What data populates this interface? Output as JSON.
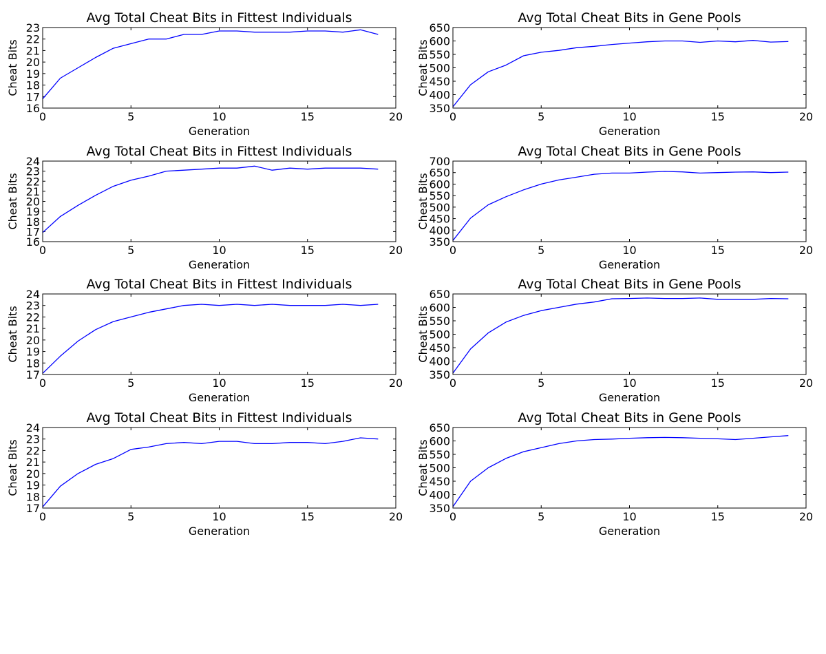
{
  "colors": {
    "series": "#0000ff"
  },
  "chart_data": [
    {
      "type": "line",
      "title": "Avg Total Cheat Bits in Fittest Individuals",
      "xlabel": "Generation",
      "ylabel": "Cheat Bits",
      "xlim": [
        0,
        20
      ],
      "ylim": [
        16,
        23
      ],
      "xticks": [
        0,
        5,
        10,
        15,
        20
      ],
      "yticks": [
        16,
        17,
        18,
        19,
        20,
        21,
        22,
        23
      ],
      "grid": false,
      "x": [
        0,
        1,
        2,
        3,
        4,
        5,
        6,
        7,
        8,
        9,
        10,
        11,
        12,
        13,
        14,
        15,
        16,
        17,
        18,
        19
      ],
      "series": [
        {
          "values": [
            16.8,
            18.6,
            19.5,
            20.4,
            21.2,
            21.6,
            22.0,
            22.0,
            22.4,
            22.4,
            22.7,
            22.7,
            22.6,
            22.6,
            22.6,
            22.7,
            22.7,
            22.6,
            22.8,
            22.4
          ]
        }
      ]
    },
    {
      "type": "line",
      "title": "Avg Total Cheat Bits in Gene Pools",
      "xlabel": "Generation",
      "ylabel": "Cheat Bits",
      "xlim": [
        0,
        20
      ],
      "ylim": [
        350,
        650
      ],
      "xticks": [
        0,
        5,
        10,
        15,
        20
      ],
      "yticks": [
        350,
        400,
        450,
        500,
        550,
        600,
        650
      ],
      "grid": false,
      "x": [
        0,
        1,
        2,
        3,
        4,
        5,
        6,
        7,
        8,
        9,
        10,
        11,
        12,
        13,
        14,
        15,
        16,
        17,
        18,
        19
      ],
      "series": [
        {
          "values": [
            355,
            437,
            485,
            510,
            545,
            558,
            565,
            575,
            580,
            587,
            592,
            597,
            600,
            600,
            595,
            600,
            597,
            602,
            596,
            598
          ]
        }
      ]
    },
    {
      "type": "line",
      "title": "Avg Total Cheat Bits in Fittest Individuals",
      "xlabel": "Generation",
      "ylabel": "Cheat Bits",
      "xlim": [
        0,
        20
      ],
      "ylim": [
        16,
        24
      ],
      "xticks": [
        0,
        5,
        10,
        15,
        20
      ],
      "yticks": [
        16,
        17,
        18,
        19,
        20,
        21,
        22,
        23,
        24
      ],
      "grid": false,
      "x": [
        0,
        1,
        2,
        3,
        4,
        5,
        6,
        7,
        8,
        9,
        10,
        11,
        12,
        13,
        14,
        15,
        16,
        17,
        18,
        19
      ],
      "series": [
        {
          "values": [
            16.9,
            18.5,
            19.6,
            20.6,
            21.5,
            22.1,
            22.5,
            23.0,
            23.1,
            23.2,
            23.3,
            23.3,
            23.5,
            23.1,
            23.3,
            23.2,
            23.3,
            23.3,
            23.3,
            23.2
          ]
        }
      ]
    },
    {
      "type": "line",
      "title": "Avg Total Cheat Bits in Gene Pools",
      "xlabel": "Generation",
      "ylabel": "Cheat Bits",
      "xlim": [
        0,
        20
      ],
      "ylim": [
        350,
        700
      ],
      "xticks": [
        0,
        5,
        10,
        15,
        20
      ],
      "yticks": [
        350,
        400,
        450,
        500,
        550,
        600,
        650,
        700
      ],
      "grid": false,
      "x": [
        0,
        1,
        2,
        3,
        4,
        5,
        6,
        7,
        8,
        9,
        10,
        11,
        12,
        13,
        14,
        15,
        16,
        17,
        18,
        19
      ],
      "series": [
        {
          "values": [
            355,
            452,
            510,
            545,
            575,
            600,
            618,
            630,
            643,
            648,
            648,
            652,
            655,
            653,
            648,
            650,
            652,
            653,
            650,
            652
          ]
        }
      ]
    },
    {
      "type": "line",
      "title": "Avg Total Cheat Bits in Fittest Individuals",
      "xlabel": "Generation",
      "ylabel": "Cheat Bits",
      "xlim": [
        0,
        20
      ],
      "ylim": [
        17,
        24
      ],
      "xticks": [
        0,
        5,
        10,
        15,
        20
      ],
      "yticks": [
        17,
        18,
        19,
        20,
        21,
        22,
        23,
        24
      ],
      "grid": false,
      "x": [
        0,
        1,
        2,
        3,
        4,
        5,
        6,
        7,
        8,
        9,
        10,
        11,
        12,
        13,
        14,
        15,
        16,
        17,
        18,
        19
      ],
      "series": [
        {
          "values": [
            17.1,
            18.6,
            19.9,
            20.9,
            21.6,
            22.0,
            22.4,
            22.7,
            23.0,
            23.1,
            23.0,
            23.1,
            23.0,
            23.1,
            23.0,
            23.0,
            23.0,
            23.1,
            23.0,
            23.1
          ]
        }
      ]
    },
    {
      "type": "line",
      "title": "Avg Total Cheat Bits in Gene Pools",
      "xlabel": "Generation",
      "ylabel": "Cheat Bits",
      "xlim": [
        0,
        20
      ],
      "ylim": [
        350,
        650
      ],
      "xticks": [
        0,
        5,
        10,
        15,
        20
      ],
      "yticks": [
        350,
        400,
        450,
        500,
        550,
        600,
        650
      ],
      "grid": false,
      "x": [
        0,
        1,
        2,
        3,
        4,
        5,
        6,
        7,
        8,
        9,
        10,
        11,
        12,
        13,
        14,
        15,
        16,
        17,
        18,
        19
      ],
      "series": [
        {
          "values": [
            355,
            445,
            505,
            545,
            570,
            588,
            600,
            612,
            620,
            632,
            633,
            635,
            633,
            633,
            635,
            630,
            630,
            630,
            633,
            632
          ]
        }
      ]
    },
    {
      "type": "line",
      "title": "Avg Total Cheat Bits in Fittest Individuals",
      "xlabel": "Generation",
      "ylabel": "Cheat Bits",
      "xlim": [
        0,
        20
      ],
      "ylim": [
        17,
        24
      ],
      "xticks": [
        0,
        5,
        10,
        15,
        20
      ],
      "yticks": [
        17,
        18,
        19,
        20,
        21,
        22,
        23,
        24
      ],
      "grid": false,
      "x": [
        0,
        1,
        2,
        3,
        4,
        5,
        6,
        7,
        8,
        9,
        10,
        11,
        12,
        13,
        14,
        15,
        16,
        17,
        18,
        19
      ],
      "series": [
        {
          "values": [
            17.1,
            18.9,
            20.0,
            20.8,
            21.3,
            22.1,
            22.3,
            22.6,
            22.7,
            22.6,
            22.8,
            22.8,
            22.6,
            22.6,
            22.7,
            22.7,
            22.6,
            22.8,
            23.1,
            23.0
          ]
        }
      ]
    },
    {
      "type": "line",
      "title": "Avg Total Cheat Bits in Gene Pools",
      "xlabel": "Generation",
      "ylabel": "Cheat Bits",
      "xlim": [
        0,
        20
      ],
      "ylim": [
        350,
        650
      ],
      "xticks": [
        0,
        5,
        10,
        15,
        20
      ],
      "yticks": [
        350,
        400,
        450,
        500,
        550,
        600,
        650
      ],
      "grid": false,
      "x": [
        0,
        1,
        2,
        3,
        4,
        5,
        6,
        7,
        8,
        9,
        10,
        11,
        12,
        13,
        14,
        15,
        16,
        17,
        18,
        19
      ],
      "series": [
        {
          "values": [
            355,
            450,
            500,
            535,
            560,
            575,
            590,
            600,
            605,
            607,
            610,
            612,
            613,
            612,
            610,
            608,
            605,
            610,
            615,
            620
          ]
        }
      ]
    }
  ]
}
